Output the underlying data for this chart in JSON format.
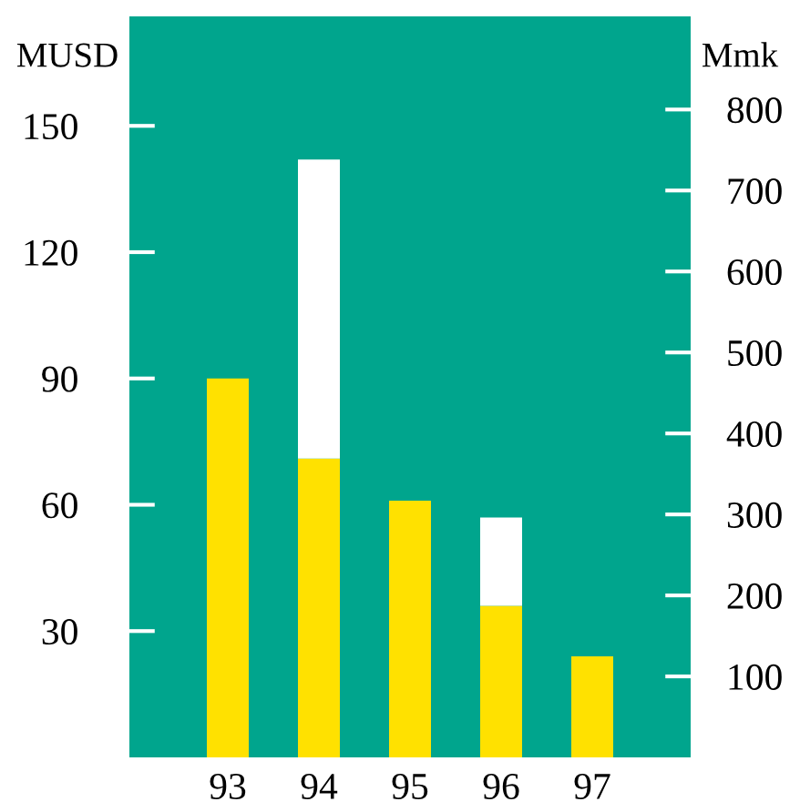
{
  "chart_data": {
    "type": "bar",
    "stacked": true,
    "ylabel": "MUSD",
    "y2label": "Mmk",
    "categories": [
      "93",
      "94",
      "95",
      "96",
      "97"
    ],
    "series": [
      {
        "color": "#ffe100",
        "values": [
          90,
          71,
          61,
          36,
          24
        ]
      },
      {
        "color": "#ffffff",
        "values": [
          null,
          71,
          null,
          21,
          null
        ]
      }
    ],
    "ylim": [
      0,
      176
    ],
    "yticks": [
      30,
      60,
      90,
      120,
      150
    ],
    "y2lim": [
      0,
      915
    ],
    "y2ticks": [
      100,
      200,
      300,
      400,
      500,
      600,
      700,
      800
    ],
    "grid": false,
    "legend": false
  }
}
